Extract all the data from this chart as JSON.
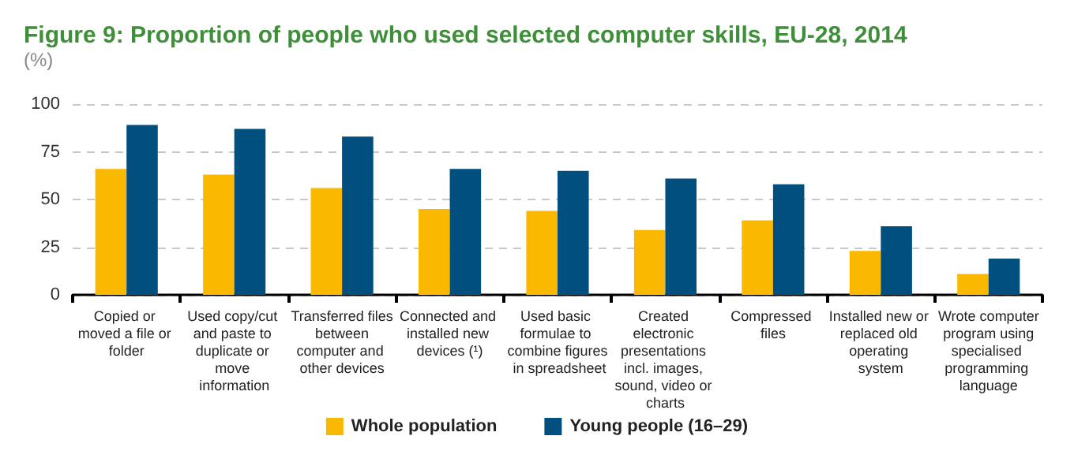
{
  "chart_data": {
    "type": "bar",
    "title": "Figure 9: Proportion of people who used selected computer skills, EU-28, 2014",
    "subtitle": "(%)",
    "categories": [
      "Copied or moved a file or folder",
      "Used copy/cut and paste to duplicate or move information",
      "Transferred files between computer and other devices",
      "Connected and installed new devices (¹)",
      "Used basic formulae to combine figures in spreadsheet",
      "Created electronic presentations incl. images, sound, video or charts",
      "Compressed files",
      "Installed new or replaced old operating system",
      "Wrote computer program using specialised programming language"
    ],
    "series": [
      {
        "name": "Whole population",
        "color": "#fbb800",
        "values": [
          66,
          63,
          56,
          45,
          44,
          34,
          39,
          23,
          11
        ]
      },
      {
        "name": "Young people (16–29)",
        "color": "#004f7f",
        "values": [
          89,
          87,
          83,
          66,
          65,
          61,
          58,
          36,
          19
        ]
      }
    ],
    "ylim": [
      0,
      100
    ],
    "yticks": [
      0,
      25,
      50,
      75,
      100
    ],
    "grid": "y",
    "legend": "bottom"
  }
}
